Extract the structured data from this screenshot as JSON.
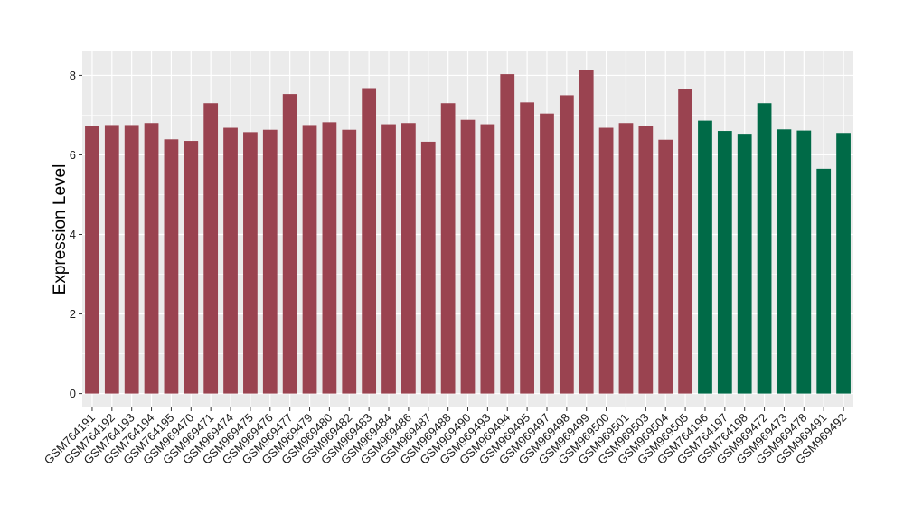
{
  "chart_data": {
    "type": "bar",
    "title": "",
    "xlabel": "",
    "ylabel": "Expression Level",
    "ylim": [
      -0.35,
      8.6
    ],
    "yticks": [
      0,
      2,
      4,
      6,
      8
    ],
    "grid": true,
    "legend": "none",
    "colors": {
      "group1": "#9A4350",
      "group2": "#006A47",
      "panel": "#EBEBEB",
      "grid": "#FFFFFF"
    },
    "categories": [
      "GSM764191",
      "GSM764192",
      "GSM764193",
      "GSM764194",
      "GSM764195",
      "GSM969470",
      "GSM969471",
      "GSM969474",
      "GSM969475",
      "GSM969476",
      "GSM969477",
      "GSM969479",
      "GSM969480",
      "GSM969482",
      "GSM969483",
      "GSM969484",
      "GSM969486",
      "GSM969487",
      "GSM969488",
      "GSM969490",
      "GSM969493",
      "GSM969494",
      "GSM969495",
      "GSM969497",
      "GSM969498",
      "GSM969499",
      "GSM969500",
      "GSM969501",
      "GSM969503",
      "GSM969504",
      "GSM969505",
      "GSM764196",
      "GSM764197",
      "GSM764198",
      "GSM969472",
      "GSM969473",
      "GSM969478",
      "GSM969491",
      "GSM969492"
    ],
    "values": [
      6.73,
      6.75,
      6.75,
      6.8,
      6.39,
      6.35,
      7.3,
      6.68,
      6.57,
      6.63,
      7.53,
      6.75,
      6.82,
      6.63,
      7.68,
      6.77,
      6.8,
      6.33,
      7.3,
      6.88,
      6.77,
      8.03,
      7.32,
      7.04,
      7.5,
      8.13,
      6.68,
      6.8,
      6.72,
      6.38,
      7.66,
      6.86,
      6.6,
      6.53,
      7.3,
      6.64,
      6.61,
      5.65,
      6.55
    ],
    "groups": [
      1,
      1,
      1,
      1,
      1,
      1,
      1,
      1,
      1,
      1,
      1,
      1,
      1,
      1,
      1,
      1,
      1,
      1,
      1,
      1,
      1,
      1,
      1,
      1,
      1,
      1,
      1,
      1,
      1,
      1,
      1,
      2,
      2,
      2,
      2,
      2,
      2,
      2,
      2
    ]
  }
}
